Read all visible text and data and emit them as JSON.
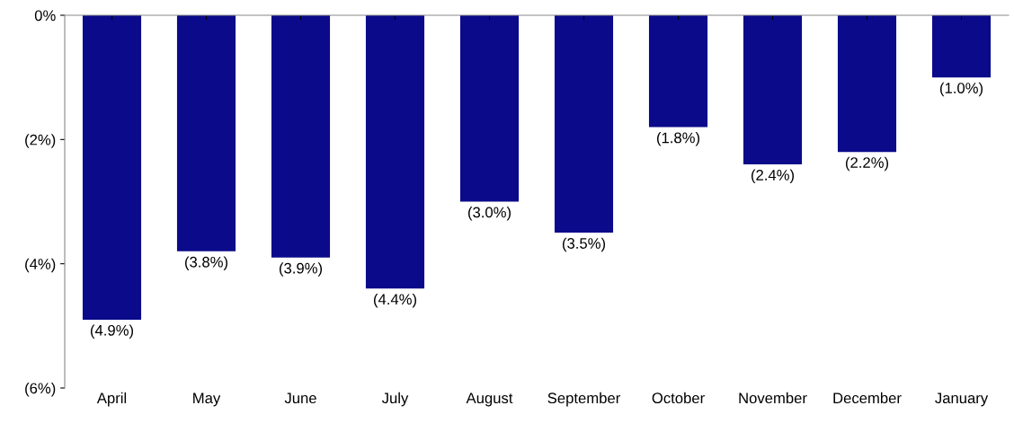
{
  "chart_data": {
    "type": "bar",
    "categories": [
      "April",
      "May",
      "June",
      "July",
      "August",
      "September",
      "October",
      "November",
      "December",
      "January"
    ],
    "values": [
      -4.9,
      -3.8,
      -3.9,
      -4.4,
      -3.0,
      -3.5,
      -1.8,
      -2.4,
      -2.2,
      -1.0
    ],
    "value_labels": [
      "(4.9%)",
      "(3.8%)",
      "(3.9%)",
      "(4.4%)",
      "(3.0%)",
      "(3.5%)",
      "(1.8%)",
      "(2.4%)",
      "(2.2%)",
      "(1.0%)"
    ],
    "color": "#0a0a8a",
    "ylim": [
      -6,
      0
    ],
    "yticks": [
      {
        "value": 0,
        "label": "0%"
      },
      {
        "value": -2,
        "label": "(2%)"
      },
      {
        "value": -4,
        "label": "(4%)"
      },
      {
        "value": -6,
        "label": "(6%)"
      }
    ],
    "grid": false,
    "legend": false
  }
}
